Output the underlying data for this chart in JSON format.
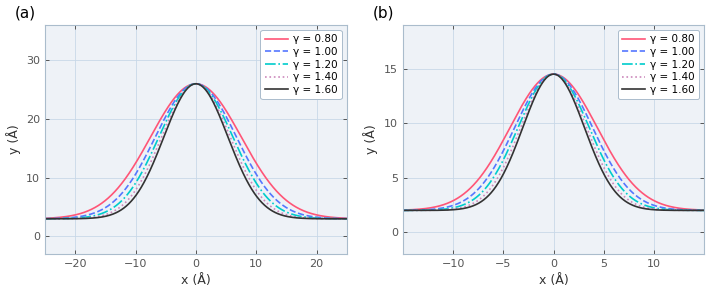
{
  "panel_a": {
    "label": "(a)",
    "xlim": [
      -25,
      25
    ],
    "ylim": [
      -3,
      36
    ],
    "yticks": [
      0,
      10,
      20,
      30
    ],
    "xticks": [
      -20,
      -10,
      0,
      10,
      20
    ],
    "xlabel": "x (Å)",
    "ylabel": "y (Å)",
    "amplitude": 23.0,
    "baseline": 3.0,
    "sigma": 9.5
  },
  "panel_b": {
    "label": "(b)",
    "xlim": [
      -15,
      15
    ],
    "ylim": [
      -2,
      19
    ],
    "yticks": [
      0,
      5,
      10,
      15
    ],
    "xticks": [
      -10,
      -5,
      0,
      5,
      10
    ],
    "xlabel": "x (Å)",
    "ylabel": "y (Å)",
    "amplitude": 12.5,
    "baseline": 2.0,
    "sigma": 5.5
  },
  "gammas": [
    0.8,
    1.0,
    1.2,
    1.4,
    1.6
  ],
  "colors": [
    "#FF5577",
    "#5577FF",
    "#00CCCC",
    "#CC88BB",
    "#333333"
  ],
  "linestyles": [
    "-",
    "--",
    "-.",
    ":",
    "-"
  ],
  "linewidths": [
    1.2,
    1.2,
    1.2,
    1.2,
    1.2
  ],
  "legend_labels": [
    "γ = 0.80",
    "γ = 1.00",
    "γ = 1.20",
    "γ = 1.40",
    "γ = 1.60"
  ],
  "bg_color": "#eef2f7",
  "spine_color": "#aabccc",
  "grid_color": "#c8d8e8",
  "tick_color": "#555555",
  "label_color": "#333333"
}
